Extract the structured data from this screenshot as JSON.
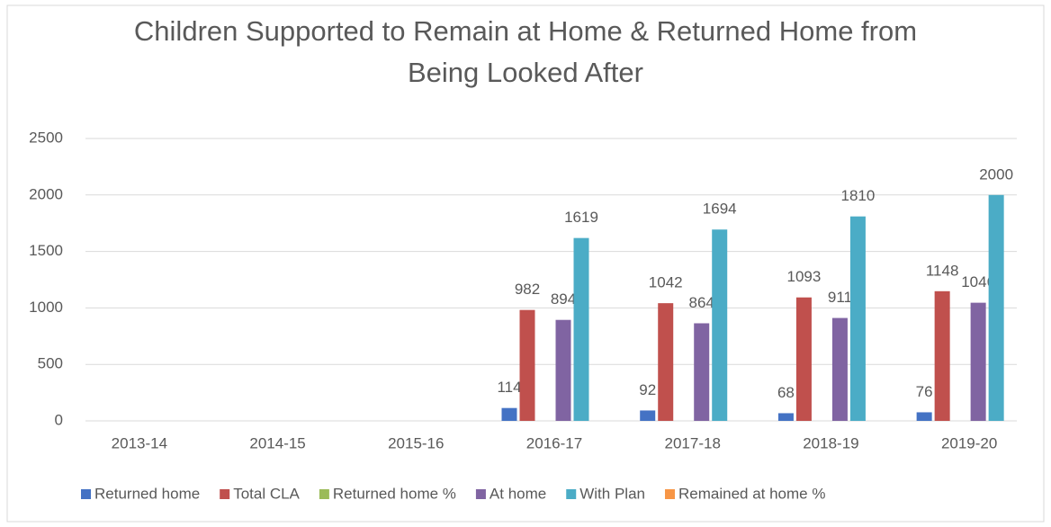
{
  "chart_data": {
    "type": "bar",
    "title": "Children Supported to Remain at Home & Returned Home from Being Looked After",
    "categories": [
      "2013-14",
      "2014-15",
      "2015-16",
      "2016-17",
      "2017-18",
      "2018-19",
      "2019-20"
    ],
    "series": [
      {
        "name": "Returned home",
        "color": "#4472c4",
        "values": [
          null,
          null,
          null,
          114,
          92,
          68,
          76
        ]
      },
      {
        "name": "Total CLA",
        "color": "#c0504d",
        "values": [
          null,
          null,
          null,
          982,
          1042,
          1093,
          1148
        ]
      },
      {
        "name": "Returned home %",
        "color": "#9bbb59",
        "values": [
          null,
          null,
          null,
          null,
          null,
          null,
          null
        ]
      },
      {
        "name": "At home",
        "color": "#8064a2",
        "values": [
          null,
          null,
          null,
          894,
          864,
          911,
          1046
        ]
      },
      {
        "name": "With Plan",
        "color": "#4bacc6",
        "values": [
          null,
          null,
          null,
          1619,
          1694,
          1810,
          2000
        ]
      },
      {
        "name": "Remained at home %",
        "color": "#f79646",
        "values": [
          null,
          null,
          null,
          null,
          null,
          null,
          null
        ]
      }
    ],
    "ylim": [
      0,
      2500
    ],
    "yticks": [
      0,
      500,
      1000,
      1500,
      2000,
      2500
    ],
    "grid": true,
    "legend": "bottom"
  }
}
